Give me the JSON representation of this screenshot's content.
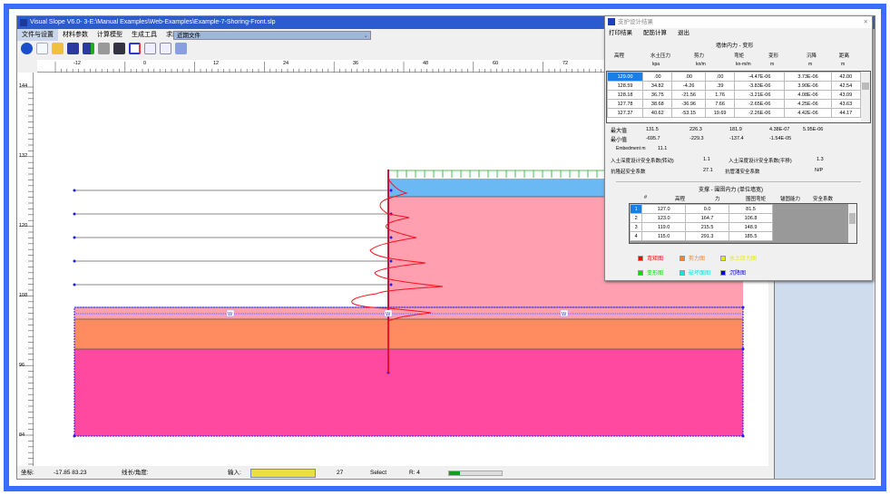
{
  "window": {
    "title": "Visual Slope V6.0- 3-E:\\Manual Examples\\Web-Examples\\Example-7-Shoring-Front.slp"
  },
  "menu": [
    "文件与设置",
    "材料参数",
    "计算模型",
    "生成工具",
    "求助"
  ],
  "recent_files": "近期文件",
  "toolbar_icons": [
    "power-icon",
    "new-file-icon",
    "open-folder-icon",
    "save-icon",
    "save-as-icon",
    "print-icon",
    "display-icon",
    "window-icon",
    "import-icon",
    "export-icon",
    "notes-icon"
  ],
  "hruler": [
    "-12",
    "0",
    "12",
    "24",
    "36",
    "48",
    "60",
    "72"
  ],
  "vruler": [
    "144",
    "132",
    "120",
    "108",
    "96",
    "84"
  ],
  "water_labels": [
    "W",
    "W",
    "W"
  ],
  "status": {
    "coord_label": "坐标:",
    "coord_value": "-17.85  83.23",
    "length_label": "线长/角度:",
    "input_label": "输入:",
    "count": "27",
    "mode": "Select",
    "r": "R: 4"
  },
  "dialog": {
    "title": "支护设计结果",
    "menu": [
      "打印结果",
      "配筋计算",
      "退出"
    ],
    "section1": "墙体内力 - 变形",
    "headers": [
      "高程",
      "水土压力",
      "剪力",
      "弯矩",
      "变形",
      "沉降",
      "距离"
    ],
    "units": [
      "",
      "kpa",
      "kn/m",
      "kn-m/m",
      "m",
      "m",
      "m"
    ],
    "rows": [
      [
        "129.00",
        ".00",
        ".00",
        ".00",
        "-4.47E-06",
        "3.73E-06",
        "42.00"
      ],
      [
        "128.59",
        "34.82",
        "-4.26",
        ".39",
        "-3.83E-06",
        "3.90E-06",
        "42.54"
      ],
      [
        "128.18",
        "36.75",
        "-21.56",
        "1.76",
        "-3.21E-06",
        "4.08E-06",
        "43.09"
      ],
      [
        "127.78",
        "38.68",
        "-36.96",
        "7.66",
        "-2.65E-06",
        "4.25E-06",
        "43.63"
      ],
      [
        "127.37",
        "40.62",
        "-53.15",
        "19.69",
        "-2.26E-06",
        "4.42E-06",
        "44.17"
      ]
    ],
    "max_label": "最大值",
    "max": [
      "131.5",
      "226.3",
      "181.9",
      "4.38E-07",
      "5.95E-06"
    ],
    "min_label": "最小值",
    "min": [
      "-695.7",
      "-229.3",
      "-137.4",
      "-1.54E-05"
    ],
    "embedment_label": "Embedment  m",
    "embedment": "11.1",
    "fs_rot_label": "入土深度设计安全系数(转动)",
    "fs_rot": "1.1",
    "fs_slide_label": "入土深度设计安全系数(平移)",
    "fs_slide": "1.3",
    "fs_heave_label": "抗隆起安全系数",
    "fs_heave": "27.1",
    "fs_piping_label": "抗管涌安全系数",
    "fs_piping": "N/P",
    "section2": "支撑 - 围囹内力 (单位墙宽)",
    "headers2": [
      "#",
      "高程",
      "力",
      "围囹弯矩",
      "锚固能力",
      "安全系数"
    ],
    "rows2": [
      [
        "1",
        "127.0",
        "0.0",
        "81.5"
      ],
      [
        "2",
        "123.0",
        "164.7",
        "106.8"
      ],
      [
        "3",
        "119.0",
        "215.5",
        "148.9"
      ],
      [
        "4",
        "115.0",
        "291.3",
        "185.5"
      ]
    ],
    "legend": [
      {
        "label": "弯矩图",
        "color": "#ff0000"
      },
      {
        "label": "剪力图",
        "color": "#ff8020"
      },
      {
        "label": "水土压力图",
        "color": "#e8e800"
      },
      {
        "label": "变形图",
        "color": "#00e000"
      },
      {
        "label": "破坏面图",
        "color": "#00e8e8"
      },
      {
        "label": "沉降图",
        "color": "#0000e0"
      }
    ]
  }
}
